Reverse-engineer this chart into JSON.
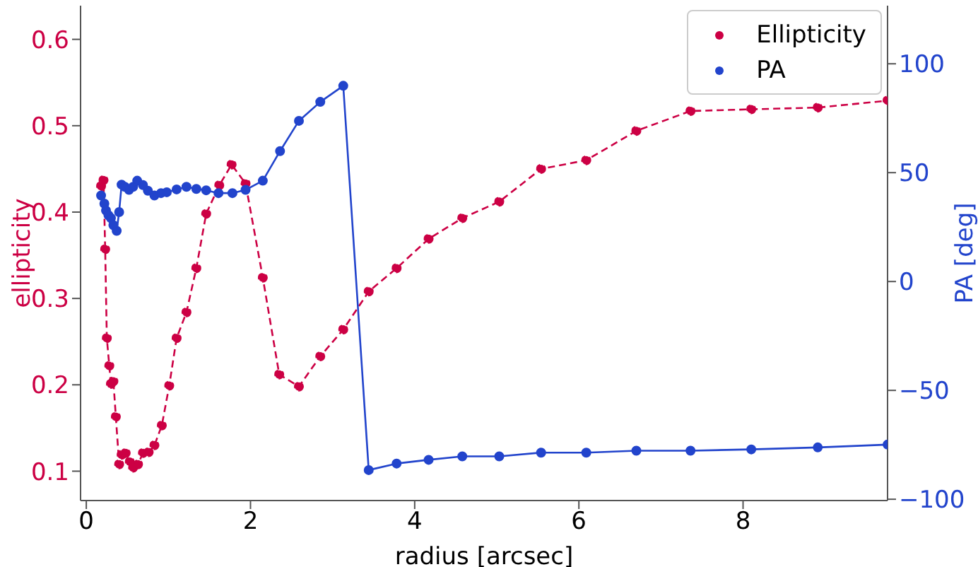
{
  "chart_data": {
    "type": "line",
    "xlabel": "radius [arcsec]",
    "ylabel": "ellipticity",
    "y2label": "PA [deg]",
    "xlim": [
      -0.07,
      9.76
    ],
    "xticks": [
      0,
      2,
      4,
      6,
      8
    ],
    "ylim": [
      0.066,
      0.639
    ],
    "yticks": [
      0.1,
      0.2,
      0.3,
      0.4,
      0.5,
      0.6
    ],
    "y2lim": [
      -100.6,
      126.7
    ],
    "y2ticks": [
      -100,
      -50,
      0,
      50,
      100
    ],
    "grid": false,
    "legend": "top right",
    "marker": "circle",
    "series": [
      {
        "name": "Ellipticity",
        "color": "#cc0044",
        "line_style": "dashed",
        "x": [
          0.18,
          0.21,
          0.23,
          0.25,
          0.28,
          0.3,
          0.33,
          0.36,
          0.4,
          0.43,
          0.48,
          0.53,
          0.57,
          0.63,
          0.69,
          0.76,
          0.83,
          0.92,
          1.01,
          1.1,
          1.22,
          1.34,
          1.46,
          1.62,
          1.77,
          1.94,
          2.15,
          2.35,
          2.59,
          2.85,
          3.13,
          3.44,
          3.78,
          4.17,
          4.58,
          5.03,
          5.54,
          6.09,
          6.7,
          7.36,
          8.1,
          8.91,
          9.76
        ],
        "values": [
          0.43,
          0.437,
          0.357,
          0.254,
          0.222,
          0.201,
          0.204,
          0.163,
          0.108,
          0.119,
          0.121,
          0.111,
          0.104,
          0.108,
          0.121,
          0.122,
          0.13,
          0.153,
          0.199,
          0.254,
          0.284,
          0.335,
          0.398,
          0.431,
          0.455,
          0.433,
          0.324,
          0.212,
          0.198,
          0.233,
          0.264,
          0.308,
          0.335,
          0.369,
          0.393,
          0.412,
          0.45,
          0.46,
          0.494,
          0.517,
          0.519,
          0.521,
          0.529
        ]
      },
      {
        "name": "PA",
        "color": "#2244cc",
        "line_style": "solid",
        "axis": "y2",
        "x": [
          0.18,
          0.22,
          0.24,
          0.27,
          0.3,
          0.33,
          0.37,
          0.4,
          0.43,
          0.47,
          0.52,
          0.57,
          0.62,
          0.69,
          0.75,
          0.83,
          0.91,
          0.98,
          1.1,
          1.22,
          1.34,
          1.46,
          1.61,
          1.78,
          1.94,
          2.15,
          2.36,
          2.59,
          2.85,
          3.13,
          3.44,
          3.78,
          4.17,
          4.58,
          5.03,
          5.54,
          6.09,
          6.7,
          7.36,
          8.1,
          8.91,
          9.76
        ],
        "values": [
          39.5,
          35.8,
          32.6,
          30.4,
          29.1,
          25.9,
          23.3,
          31.9,
          44.5,
          43.5,
          42.1,
          43.5,
          46.3,
          44.3,
          41.7,
          39.5,
          40.6,
          41.0,
          42.3,
          43.5,
          42.5,
          41.9,
          40.6,
          40.6,
          42.1,
          46.3,
          59.9,
          73.8,
          82.5,
          89.9,
          -86.6,
          -83.6,
          -81.9,
          -80.3,
          -80.3,
          -78.6,
          -78.6,
          -77.7,
          -77.7,
          -77.1,
          -76.2,
          -74.9
        ]
      }
    ]
  }
}
